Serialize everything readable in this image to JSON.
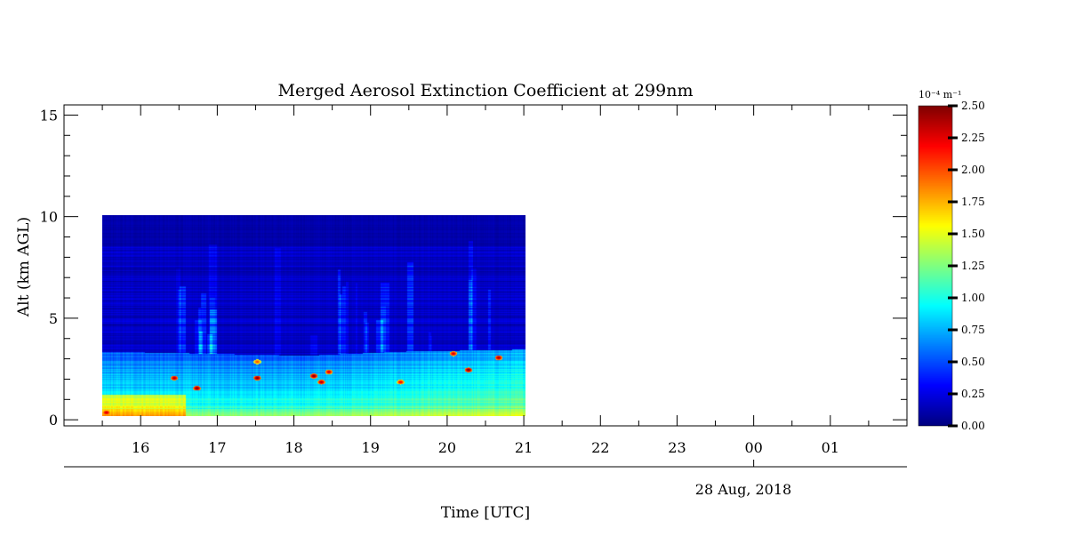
{
  "chart_data": {
    "type": "heatmap",
    "title": "Merged Aerosol Extinction Coefficient at 299nm",
    "xlabel": "Time [UTC]",
    "ylabel": "Alt (km AGL)",
    "date_label": "28 Aug, 2018",
    "x_tick_labels": [
      "16",
      "17",
      "18",
      "19",
      "20",
      "21",
      "22",
      "23",
      "00",
      "01"
    ],
    "x_tick_hours": [
      16,
      17,
      18,
      19,
      20,
      21,
      22,
      23,
      24,
      25
    ],
    "xlim_hours": [
      15,
      26
    ],
    "date_marker_hour": 24,
    "y_tick_labels": [
      "0",
      "5",
      "10",
      "15"
    ],
    "y_ticks": [
      0,
      5,
      10,
      15
    ],
    "ylim": [
      -0.3,
      15.5
    ],
    "data_extent": {
      "time_start_hour": 15.5,
      "time_end_hour": 21.1,
      "alt_min_km": 0.15,
      "alt_max_km": 10
    },
    "colorbar": {
      "unit_label": "10⁻⁴ m⁻¹",
      "range": [
        0,
        2.5
      ],
      "tick_labels": [
        "0.00",
        "0.25",
        "0.50",
        "0.75",
        "1.00",
        "1.25",
        "1.50",
        "1.75",
        "2.00",
        "2.25",
        "2.50"
      ],
      "ticks": [
        0,
        0.25,
        0.5,
        0.75,
        1,
        1.25,
        1.5,
        1.75,
        2,
        2.25,
        2.5
      ],
      "colormap": "jet"
    },
    "features": {
      "background_upper": 0.05,
      "boundary_layer_top_km": [
        {
          "hour": 15.5,
          "top": 3.3
        },
        {
          "hour": 18.2,
          "top": 3.1
        },
        {
          "hour": 19.5,
          "top": 3.3
        },
        {
          "hour": 21.1,
          "top": 3.4
        }
      ],
      "hotspots": [
        {
          "hour": 15.55,
          "alt": 0.3,
          "value": 2.3
        },
        {
          "hour": 16.45,
          "alt": 2.0,
          "value": 2.4
        },
        {
          "hour": 16.75,
          "alt": 1.5,
          "value": 2.5
        },
        {
          "hour": 17.55,
          "alt": 2.8,
          "value": 2.0
        },
        {
          "hour": 17.55,
          "alt": 2.0,
          "value": 2.5
        },
        {
          "hour": 18.3,
          "alt": 2.1,
          "value": 2.5
        },
        {
          "hour": 18.4,
          "alt": 1.8,
          "value": 2.4
        },
        {
          "hour": 18.5,
          "alt": 2.3,
          "value": 2.3
        },
        {
          "hour": 19.45,
          "alt": 1.8,
          "value": 2.2
        },
        {
          "hour": 20.15,
          "alt": 3.2,
          "value": 2.3
        },
        {
          "hour": 20.35,
          "alt": 2.4,
          "value": 2.5
        },
        {
          "hour": 20.75,
          "alt": 3.0,
          "value": 2.4
        }
      ]
    }
  }
}
